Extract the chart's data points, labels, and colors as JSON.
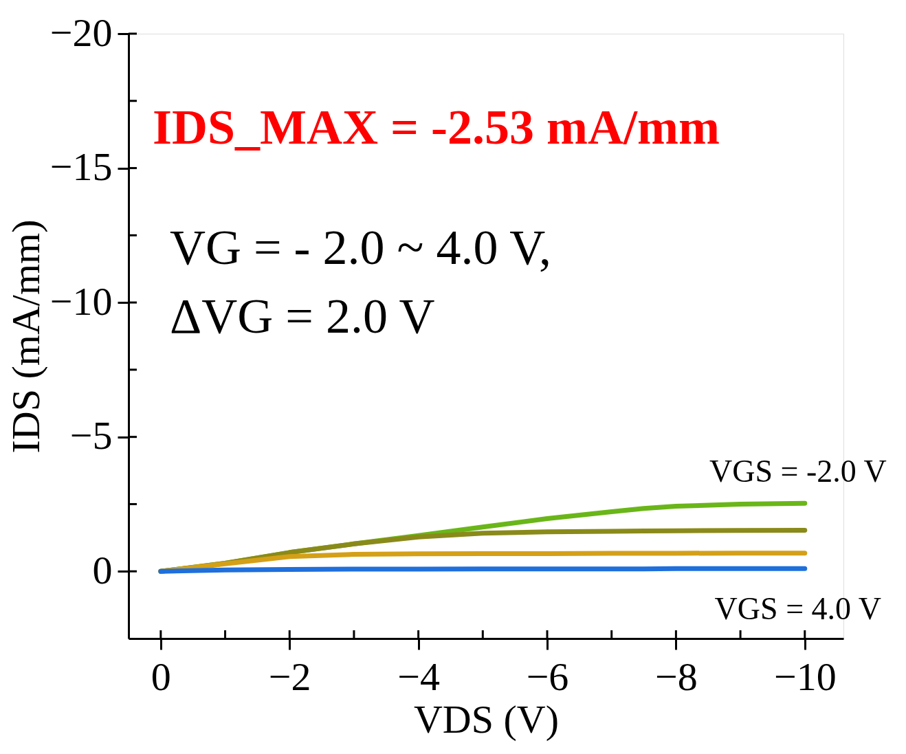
{
  "chart_data": {
    "type": "line",
    "xlabel": "VDS (V)",
    "ylabel": "IDS (mA/mm)",
    "annotations": [
      "IDS_MAX = -2.53 mA/mm",
      "VG = - 2.0 ~ 4.0 V,",
      "ΔVG = 2.0 V"
    ],
    "xlim": [
      0.5,
      -10.6
    ],
    "xticks": [
      0,
      -2,
      -4,
      -6,
      -8,
      -10
    ],
    "ylim": [
      2.5,
      -20
    ],
    "yticks": [
      0,
      -5,
      -10,
      -15,
      -20
    ],
    "grid": false,
    "legend": false,
    "marker": "none",
    "line_style": "solid",
    "x": [
      0,
      -1,
      -2,
      -3,
      -4,
      -5,
      -6,
      -7,
      -7.5,
      -8,
      -9,
      -10
    ],
    "series": [
      {
        "name": "VGS = -2.0 V",
        "color": "#6ab619",
        "values": [
          0,
          -0.3,
          -0.7,
          -1.02,
          -1.33,
          -1.65,
          -1.96,
          -2.22,
          -2.34,
          -2.42,
          -2.5,
          -2.53
        ]
      },
      {
        "color": "#8a8a1a",
        "values": [
          0,
          -0.3,
          -0.7,
          -1.02,
          -1.28,
          -1.42,
          -1.47,
          -1.49,
          -1.5,
          -1.51,
          -1.52,
          -1.53
        ]
      },
      {
        "color": "#d4a017",
        "values": [
          0,
          -0.28,
          -0.55,
          -0.63,
          -0.65,
          -0.66,
          -0.66,
          -0.67,
          -0.67,
          -0.67,
          -0.68,
          -0.68
        ]
      },
      {
        "name": "VGS = 4.0 V",
        "color": "#1f6fdc",
        "values": [
          0,
          -0.05,
          -0.07,
          -0.08,
          -0.08,
          -0.09,
          -0.09,
          -0.09,
          -0.09,
          -0.1,
          -0.1,
          -0.1
        ]
      }
    ]
  }
}
